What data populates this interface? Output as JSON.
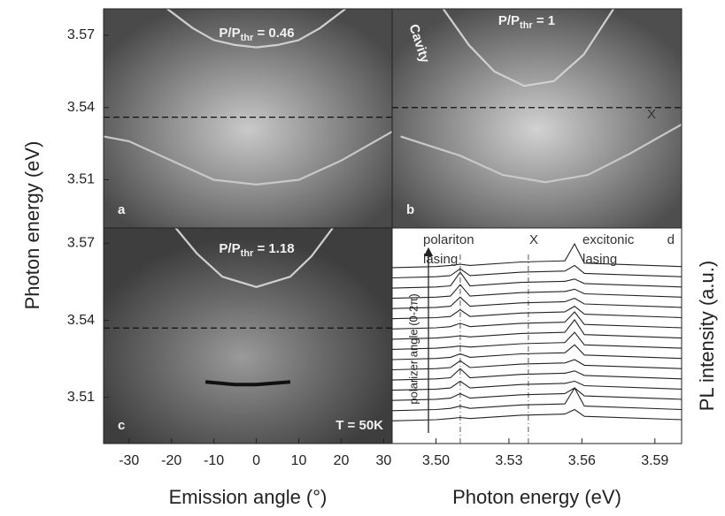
{
  "chart_data": [
    {
      "type": "line",
      "panel": "a",
      "title": {
        "main": "P/P",
        "sub": "thr",
        "rest": " = 0.46"
      },
      "ylabel": "Photon energy (eV)",
      "xlim": [
        -36,
        32
      ],
      "ylim": [
        3.49,
        3.581
      ],
      "yticks": [
        3.57,
        3.54,
        3.51
      ],
      "exciton_energy": 3.536,
      "series": [
        {
          "color": "#d0d0d0",
          "x": [
            -21,
            -15,
            -10,
            -5,
            0,
            5,
            10,
            15,
            21
          ],
          "values": [
            3.581,
            3.573,
            3.568,
            3.566,
            3.565,
            3.566,
            3.568,
            3.573,
            3.581
          ]
        },
        {
          "color": "#c8c8c8",
          "x": [
            -36,
            -30,
            -20,
            -10,
            0,
            10,
            20,
            30,
            32
          ],
          "values": [
            3.528,
            3.526,
            3.518,
            3.51,
            3.508,
            3.51,
            3.518,
            3.528,
            3.53
          ]
        }
      ]
    },
    {
      "type": "line",
      "panel": "b",
      "title": {
        "main": "P/P",
        "sub": "thr",
        "rest": " = 1"
      },
      "annotations": [
        "Cavity",
        "X"
      ],
      "xlim": [
        -36,
        32
      ],
      "ylim": [
        3.49,
        3.581
      ],
      "exciton_energy": 3.54,
      "series": [
        {
          "color": "#d0d0d0",
          "x": [
            -24,
            -18,
            -12,
            -5,
            2,
            9,
            16
          ],
          "values": [
            3.581,
            3.566,
            3.555,
            3.549,
            3.551,
            3.562,
            3.581
          ]
        },
        {
          "color": "#c8c8c8",
          "x": [
            -34,
            -20,
            -10,
            0,
            10,
            20,
            32
          ],
          "values": [
            3.528,
            3.52,
            3.512,
            3.509,
            3.512,
            3.521,
            3.533
          ]
        }
      ]
    },
    {
      "type": "line",
      "panel": "c",
      "title": {
        "main": "P/P",
        "sub": "thr",
        "rest": " = 1.18"
      },
      "annotations": [
        "T = 50K"
      ],
      "xlabel": "Emission angle (°)",
      "xlim": [
        -36,
        32
      ],
      "ylim": [
        3.492,
        3.576
      ],
      "yticks": [
        3.57,
        3.54,
        3.51
      ],
      "xticks": [
        -30,
        -20,
        -10,
        0,
        10,
        20,
        30
      ],
      "exciton_energy": 3.537,
      "series": [
        {
          "color": "#d0d0d0",
          "x": [
            -19,
            -14,
            -8,
            0,
            8,
            13,
            18
          ],
          "values": [
            3.576,
            3.566,
            3.557,
            3.553,
            3.557,
            3.565,
            3.576
          ]
        },
        {
          "color": "#111111",
          "x": [
            -12,
            -5,
            0,
            8
          ],
          "values": [
            3.516,
            3.515,
            3.515,
            3.516
          ]
        }
      ]
    },
    {
      "type": "spectra",
      "panel": "d",
      "xlabel": "Photon energy (eV)",
      "ylabel": "PL intensity (a.u.)",
      "side_label": "polarizer angle (0-2π)",
      "annotations": [
        "polariton",
        "lasing",
        "X",
        "excitonic",
        "lasing"
      ],
      "reference_x": [
        3.51,
        3.538
      ],
      "xlim": [
        3.482,
        3.601
      ],
      "ylim": [
        0,
        19
      ],
      "xticks": [
        {
          "value": 3.5,
          "label": "3.50"
        },
        3.53,
        3.56,
        3.59
      ],
      "x": [
        3.482,
        3.5,
        3.506,
        3.51,
        3.514,
        3.535,
        3.553,
        3.557,
        3.561,
        3.601
      ],
      "series": [
        {
          "color": "#222222",
          "values": [
            2.0,
            2.1,
            2.2,
            2.3,
            2.2,
            2.5,
            2.6,
            3.0,
            2.4,
            2.1
          ]
        },
        {
          "color": "#222222",
          "values": [
            2.9,
            3.0,
            3.1,
            3.3,
            3.1,
            3.4,
            3.5,
            4.9,
            3.3,
            3.0
          ]
        },
        {
          "color": "#222222",
          "values": [
            3.8,
            3.9,
            4.0,
            4.4,
            4.0,
            4.3,
            4.4,
            4.9,
            4.2,
            3.9
          ]
        },
        {
          "color": "#222222",
          "values": [
            4.7,
            4.8,
            4.9,
            5.5,
            4.9,
            5.2,
            5.3,
            5.5,
            5.1,
            4.8
          ]
        },
        {
          "color": "#222222",
          "values": [
            5.6,
            5.7,
            5.8,
            6.6,
            5.8,
            6.1,
            6.2,
            6.4,
            6.0,
            5.7
          ]
        },
        {
          "color": "#222222",
          "values": [
            6.5,
            6.6,
            6.7,
            7.3,
            6.7,
            7.0,
            7.1,
            7.4,
            6.9,
            6.6
          ]
        },
        {
          "color": "#222222",
          "values": [
            7.4,
            7.5,
            7.6,
            7.9,
            7.6,
            7.9,
            8.0,
            8.7,
            7.8,
            7.5
          ]
        },
        {
          "color": "#222222",
          "values": [
            8.3,
            8.4,
            8.5,
            8.6,
            8.5,
            8.8,
            8.9,
            9.8,
            8.7,
            8.4
          ]
        },
        {
          "color": "#222222",
          "values": [
            9.2,
            9.3,
            9.4,
            9.5,
            9.4,
            9.7,
            9.8,
            10.9,
            9.6,
            9.3
          ]
        },
        {
          "color": "#222222",
          "values": [
            10.1,
            10.2,
            10.3,
            10.6,
            10.3,
            10.6,
            10.7,
            11.6,
            10.5,
            10.2
          ]
        },
        {
          "color": "#222222",
          "values": [
            11.0,
            11.1,
            11.2,
            11.8,
            11.2,
            11.5,
            11.6,
            12.1,
            11.4,
            11.1
          ]
        },
        {
          "color": "#222222",
          "values": [
            11.9,
            12.0,
            12.1,
            12.9,
            12.1,
            12.4,
            12.5,
            12.8,
            12.3,
            12.0
          ]
        },
        {
          "color": "#222222",
          "values": [
            12.8,
            12.9,
            13.0,
            14.0,
            13.0,
            13.3,
            13.4,
            13.6,
            13.2,
            12.9
          ]
        },
        {
          "color": "#222222",
          "values": [
            13.7,
            13.8,
            13.9,
            15.1,
            13.9,
            14.2,
            14.3,
            14.5,
            14.1,
            13.8
          ]
        },
        {
          "color": "#222222",
          "values": [
            14.6,
            14.7,
            14.8,
            15.4,
            14.8,
            15.1,
            15.2,
            15.7,
            15.0,
            14.7
          ]
        },
        {
          "color": "#222222",
          "values": [
            15.5,
            15.6,
            15.7,
            15.8,
            15.7,
            16.0,
            16.1,
            17.6,
            15.9,
            15.6
          ]
        }
      ]
    }
  ]
}
